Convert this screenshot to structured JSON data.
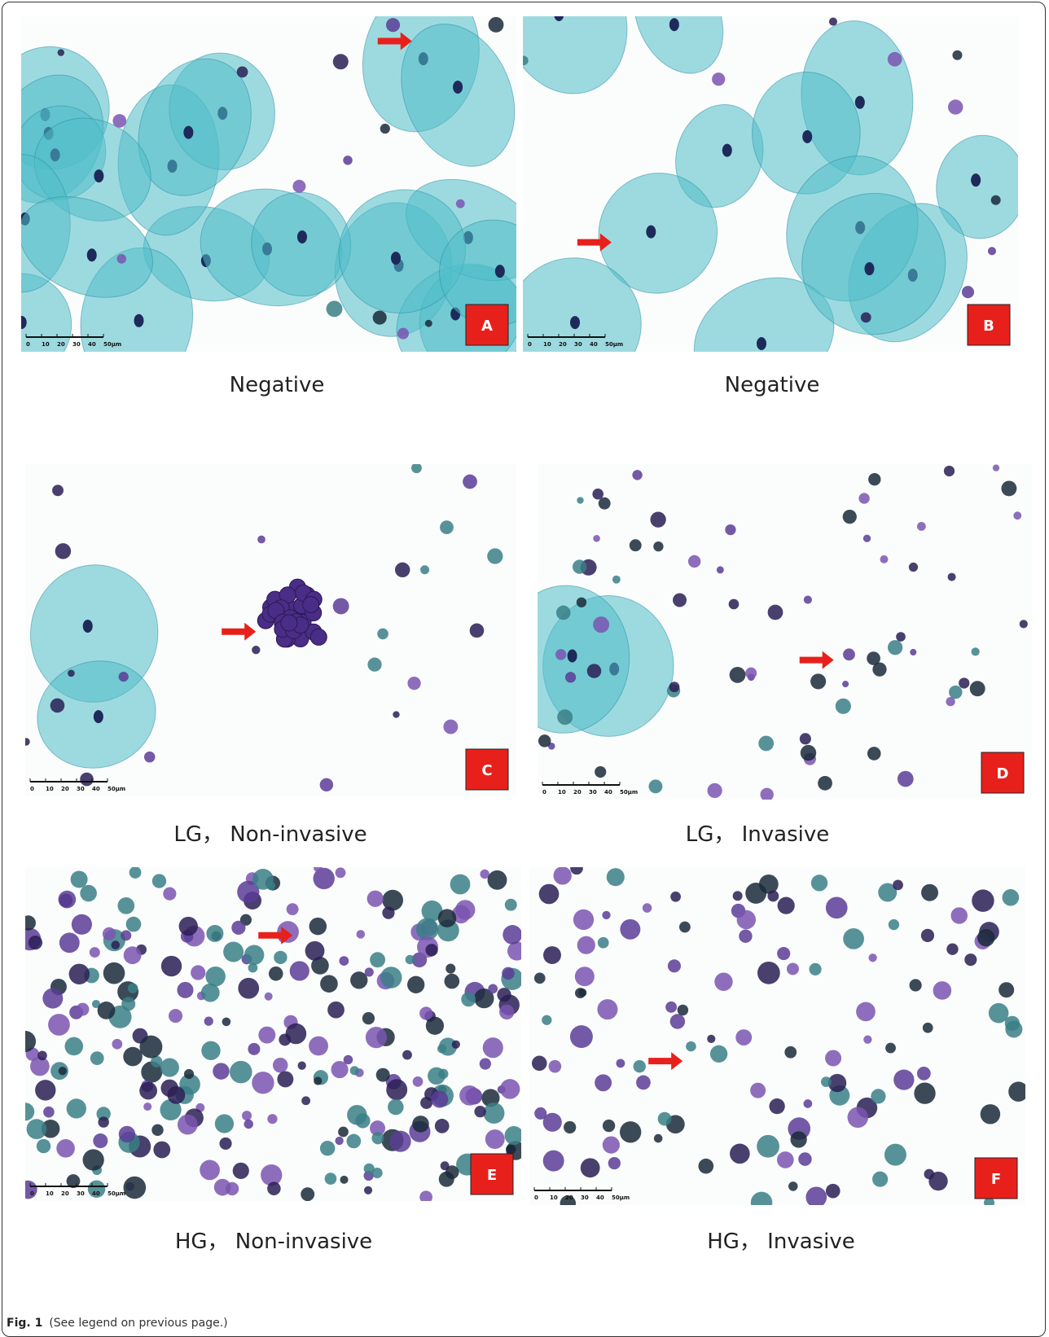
{
  "panels": [
    {
      "letter": "A",
      "caption": "Negative"
    },
    {
      "letter": "B",
      "caption": "Negative"
    },
    {
      "letter": "C",
      "caption": "LG， Non-invasive"
    },
    {
      "letter": "D",
      "caption": "LG， Invasive"
    },
    {
      "letter": "E",
      "caption": "HG， Non-invasive"
    },
    {
      "letter": "F",
      "caption": "HG， Invasive"
    }
  ],
  "scale_bar": [
    "0",
    "10",
    "20",
    "30",
    "40",
    "50μm"
  ],
  "figure_caption": {
    "label": "Fig. 1",
    "text": "(See legend on previous page.)"
  }
}
